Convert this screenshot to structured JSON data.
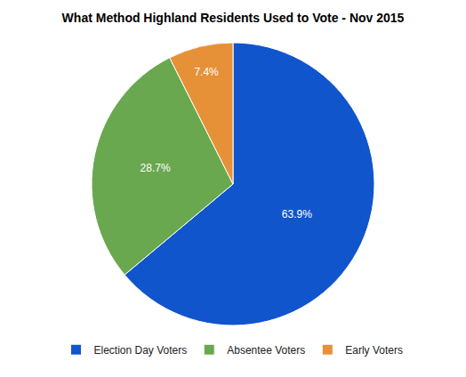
{
  "chart_data": {
    "type": "pie",
    "title": "What Method Highland Residents Used to Vote - Nov 2015",
    "categories": [
      "Election Day Voters",
      "Absentee Voters",
      "Early Voters"
    ],
    "values": [
      63.9,
      28.7,
      7.4
    ],
    "value_labels": [
      "63.9%",
      "28.7%",
      "7.4%"
    ],
    "colors": [
      "#1155cc",
      "#6aa84f",
      "#e69138"
    ],
    "data_labels": true,
    "legend": "bottom"
  }
}
